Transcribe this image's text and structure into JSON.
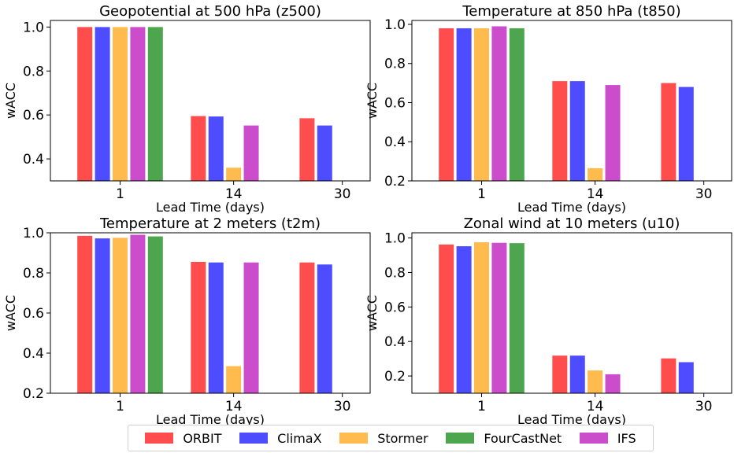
{
  "chart_data": [
    {
      "type": "bar",
      "title": "Geopotential at 500 hPa (z500)",
      "xlabel": "Lead Time (days)",
      "ylabel": "wACC",
      "categories": [
        "1",
        "14",
        "30"
      ],
      "ylim": [
        0.3,
        1.03
      ],
      "yticks": [
        0.4,
        0.6,
        0.8,
        1.0
      ],
      "ytick_labels": [
        "0.4",
        "0.6",
        "0.8",
        "1.0"
      ],
      "series": [
        {
          "name": "ORBIT",
          "values": [
            1.0,
            0.595,
            0.585
          ]
        },
        {
          "name": "ClimaX",
          "values": [
            1.0,
            0.593,
            0.552
          ]
        },
        {
          "name": "Stormer",
          "values": [
            1.0,
            0.36,
            null
          ]
        },
        {
          "name": "IFS",
          "values": [
            1.0,
            0.552,
            null
          ]
        },
        {
          "name": "FourCastNet",
          "values": [
            1.0,
            null,
            null
          ]
        }
      ]
    },
    {
      "type": "bar",
      "title": "Temperature at 850 hPa (t850)",
      "xlabel": "Lead Time (days)",
      "ylabel": "wACC",
      "categories": [
        "1",
        "14",
        "30"
      ],
      "ylim": [
        0.2,
        1.02
      ],
      "yticks": [
        0.2,
        0.4,
        0.6,
        0.8,
        1.0
      ],
      "ytick_labels": [
        "0.2",
        "0.4",
        "0.6",
        "0.8",
        "1.0"
      ],
      "series": [
        {
          "name": "ORBIT",
          "values": [
            0.98,
            0.71,
            0.7
          ]
        },
        {
          "name": "ClimaX",
          "values": [
            0.98,
            0.71,
            0.68
          ]
        },
        {
          "name": "Stormer",
          "values": [
            0.98,
            0.265,
            null
          ]
        },
        {
          "name": "IFS",
          "values": [
            0.99,
            0.69,
            null
          ]
        },
        {
          "name": "FourCastNet",
          "values": [
            0.98,
            null,
            null
          ]
        }
      ]
    },
    {
      "type": "bar",
      "title": "Temperature at 2 meters (t2m)",
      "xlabel": "Lead Time (days)",
      "ylabel": "wACC",
      "categories": [
        "1",
        "14",
        "30"
      ],
      "ylim": [
        0.2,
        1.0
      ],
      "yticks": [
        0.2,
        0.4,
        0.6,
        0.8,
        1.0
      ],
      "ytick_labels": [
        "0.2",
        "0.4",
        "0.6",
        "0.8",
        "1.0"
      ],
      "series": [
        {
          "name": "ORBIT",
          "values": [
            0.985,
            0.855,
            0.852
          ]
        },
        {
          "name": "ClimaX",
          "values": [
            0.972,
            0.852,
            0.842
          ]
        },
        {
          "name": "Stormer",
          "values": [
            0.975,
            0.335,
            null
          ]
        },
        {
          "name": "IFS",
          "values": [
            0.99,
            0.852,
            null
          ]
        },
        {
          "name": "FourCastNet",
          "values": [
            0.982,
            null,
            null
          ]
        }
      ]
    },
    {
      "type": "bar",
      "title": "Zonal wind at 10 meters (u10)",
      "xlabel": "Lead Time (days)",
      "ylabel": "wACC",
      "categories": [
        "1",
        "14",
        "30"
      ],
      "ylim": [
        0.1,
        1.03
      ],
      "yticks": [
        0.2,
        0.4,
        0.6,
        0.8,
        1.0
      ],
      "ytick_labels": [
        "0.2",
        "0.4",
        "0.6",
        "0.8",
        "1.0"
      ],
      "series": [
        {
          "name": "ORBIT",
          "values": [
            0.962,
            0.318,
            0.302
          ]
        },
        {
          "name": "ClimaX",
          "values": [
            0.952,
            0.318,
            0.28
          ]
        },
        {
          "name": "Stormer",
          "values": [
            0.975,
            0.232,
            null
          ]
        },
        {
          "name": "IFS",
          "values": [
            0.972,
            0.21,
            null
          ]
        },
        {
          "name": "FourCastNet",
          "values": [
            0.97,
            null,
            null
          ]
        }
      ]
    }
  ],
  "colors": {
    "ORBIT": "#ff4d4d",
    "ClimaX": "#4d4dff",
    "Stormer": "#ffbb4d",
    "FourCastNet": "#4da64d",
    "IFS": "#cc4dcc"
  },
  "legend": {
    "placement": "bottom-center",
    "items": [
      "ORBIT",
      "ClimaX",
      "Stormer",
      "FourCastNet",
      "IFS"
    ]
  }
}
